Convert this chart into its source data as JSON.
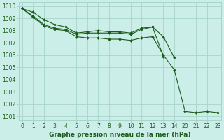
{
  "title": "Graphe pression niveau de la mer (hPa)",
  "bg_color": "#cceee8",
  "grid_color": "#a8d4cc",
  "line_color": "#1a5c1a",
  "marker_color": "#1a5c1a",
  "ylim": [
    1001,
    1010
  ],
  "yticks": [
    1001,
    1002,
    1003,
    1004,
    1005,
    1006,
    1007,
    1008,
    1009,
    1010
  ],
  "xtick_vals": [
    0,
    1,
    2,
    3,
    4,
    5,
    6,
    7,
    8,
    9,
    10,
    11,
    12,
    13,
    14,
    20,
    21,
    22,
    23
  ],
  "xtick_labels": [
    "0",
    "1",
    "2",
    "3",
    "4",
    "5",
    "6",
    "7",
    "8",
    "9",
    "10",
    "11",
    "12",
    "13",
    "14",
    "20",
    "21",
    "22",
    "23"
  ],
  "series": [
    {
      "x": [
        0,
        1,
        2,
        3,
        4,
        5,
        6,
        7,
        8,
        9,
        10,
        11,
        12,
        13
      ],
      "y": [
        1009.8,
        1009.5,
        1008.9,
        1008.5,
        1008.3,
        1007.8,
        1007.9,
        1008.0,
        1007.9,
        1007.9,
        1007.8,
        1008.2,
        1008.3,
        1005.9
      ]
    },
    {
      "x": [
        0,
        1,
        2,
        3,
        4,
        5,
        6,
        7,
        8,
        9,
        10,
        11,
        12,
        13,
        14
      ],
      "y": [
        1009.8,
        1009.2,
        1008.5,
        1008.2,
        1008.1,
        1007.7,
        1007.8,
        1007.8,
        1007.8,
        1007.8,
        1007.7,
        1008.1,
        1008.3,
        1007.5,
        1005.8
      ]
    },
    {
      "x": [
        0,
        1,
        2,
        3,
        4,
        5,
        6,
        7,
        8,
        9,
        10,
        11,
        12,
        13,
        14,
        20,
        21,
        22,
        23
      ],
      "y": [
        1009.8,
        1009.1,
        1008.4,
        1008.1,
        1008.0,
        1007.5,
        1007.4,
        1007.4,
        1007.3,
        1007.3,
        1007.2,
        1007.4,
        1007.5,
        1006.0,
        1004.8,
        1001.4,
        1001.3,
        1001.4,
        1001.3
      ]
    }
  ]
}
